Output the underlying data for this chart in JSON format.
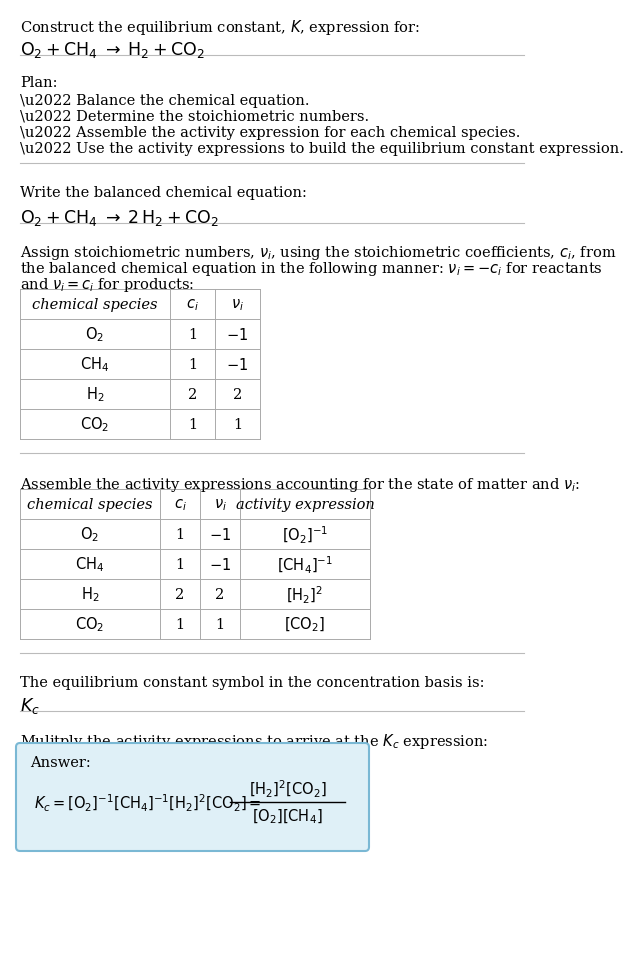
{
  "title_line1": "Construct the equilibrium constant, $K$, expression for:",
  "title_line2": "$\\mathrm{O_2 + CH_4 \\;\\rightarrow\\; H_2 + CO_2}$",
  "plan_header": "Plan:",
  "plan_items": [
    "\\u2022 Balance the chemical equation.",
    "\\u2022 Determine the stoichiometric numbers.",
    "\\u2022 Assemble the activity expression for each chemical species.",
    "\\u2022 Use the activity expressions to build the equilibrium constant expression."
  ],
  "balanced_header": "Write the balanced chemical equation:",
  "balanced_eq": "$\\mathrm{O_2 + CH_4 \\;\\rightarrow\\; 2\\,H_2 + CO_2}$",
  "stoich_text1": "Assign stoichiometric numbers, $\\nu_i$, using the stoichiometric coefficients, $c_i$, from",
  "stoich_text2": "the balanced chemical equation in the following manner: $\\nu_i = -c_i$ for reactants",
  "stoich_text3": "and $\\nu_i = c_i$ for products:",
  "table1_col0": "chemical species",
  "table1_col1": "$c_i$",
  "table1_col2": "$\\nu_i$",
  "table1_rows": [
    [
      "$\\mathrm{O_2}$",
      "1",
      "$-1$"
    ],
    [
      "$\\mathrm{CH_4}$",
      "1",
      "$-1$"
    ],
    [
      "$\\mathrm{H_2}$",
      "2",
      "2"
    ],
    [
      "$\\mathrm{CO_2}$",
      "1",
      "1"
    ]
  ],
  "activity_header": "Assemble the activity expressions accounting for the state of matter and $\\nu_i$:",
  "table2_col0": "chemical species",
  "table2_col1": "$c_i$",
  "table2_col2": "$\\nu_i$",
  "table2_col3": "activity expression",
  "table2_rows": [
    [
      "$\\mathrm{O_2}$",
      "1",
      "$-1$",
      "$[\\mathrm{O_2}]^{-1}$"
    ],
    [
      "$\\mathrm{CH_4}$",
      "1",
      "$-1$",
      "$[\\mathrm{CH_4}]^{-1}$"
    ],
    [
      "$\\mathrm{H_2}$",
      "2",
      "2",
      "$[\\mathrm{H_2}]^{2}$"
    ],
    [
      "$\\mathrm{CO_2}$",
      "1",
      "1",
      "$[\\mathrm{CO_2}]$"
    ]
  ],
  "kc_header": "The equilibrium constant symbol in the concentration basis is:",
  "kc_symbol": "$K_c$",
  "multiply_header": "Mulitply the activity expressions to arrive at the $K_c$ expression:",
  "answer_label": "Answer:",
  "answer_bg": "#dff0f7",
  "answer_border": "#7ab8d4",
  "bg_color": "#ffffff",
  "sep_color": "#bbbbbb",
  "table_line_color": "#aaaaaa"
}
